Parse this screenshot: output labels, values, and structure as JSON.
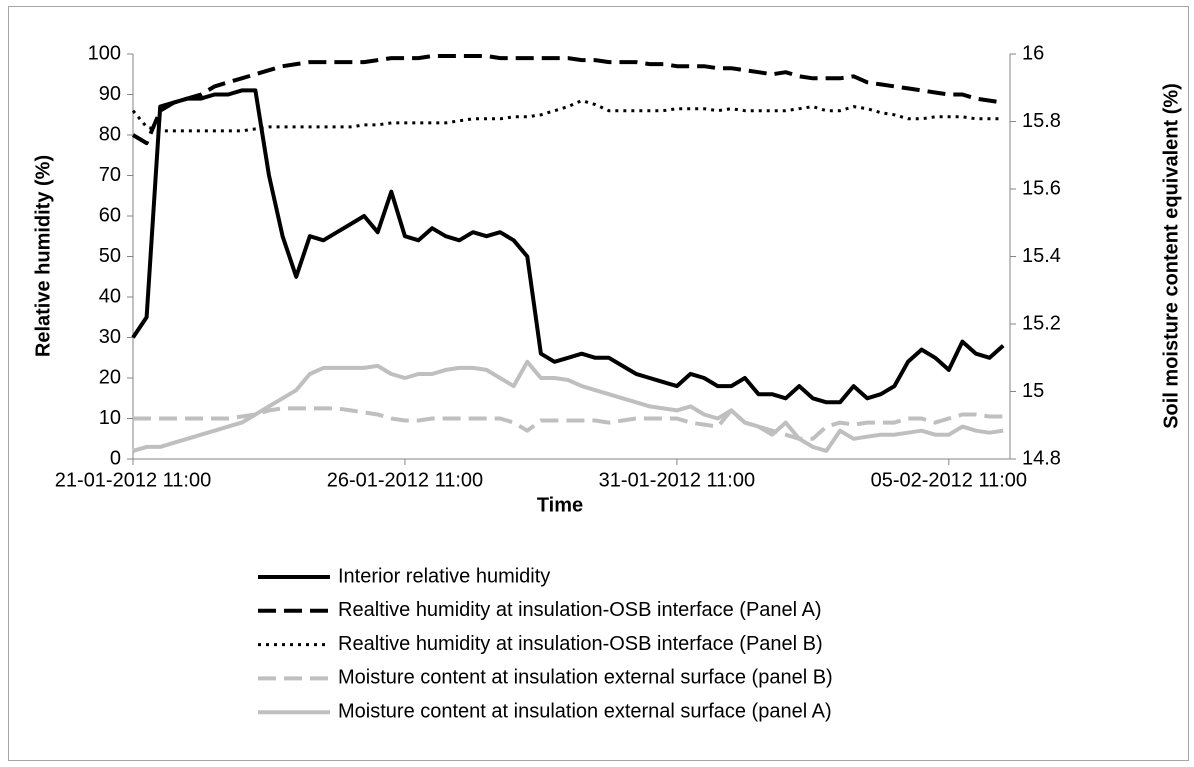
{
  "chart_data": {
    "type": "line",
    "x_label": "Time",
    "y_label": "Relative humidity (%)",
    "y2_label": "Soil moisture content equivalent (%)",
    "x": [
      "2012-01-21T11:00",
      "2012-01-21T17:00",
      "2012-01-21T23:00",
      "2012-01-22T05:00",
      "2012-01-22T11:00",
      "2012-01-22T17:00",
      "2012-01-22T23:00",
      "2012-01-23T05:00",
      "2012-01-23T11:00",
      "2012-01-23T17:00",
      "2012-01-23T23:00",
      "2012-01-24T05:00",
      "2012-01-24T11:00",
      "2012-01-24T17:00",
      "2012-01-24T23:00",
      "2012-01-25T05:00",
      "2012-01-25T11:00",
      "2012-01-25T17:00",
      "2012-01-25T23:00",
      "2012-01-26T05:00",
      "2012-01-26T11:00",
      "2012-01-26T17:00",
      "2012-01-26T23:00",
      "2012-01-27T05:00",
      "2012-01-27T11:00",
      "2012-01-27T17:00",
      "2012-01-27T23:00",
      "2012-01-28T05:00",
      "2012-01-28T11:00",
      "2012-01-28T17:00",
      "2012-01-28T23:00",
      "2012-01-29T05:00",
      "2012-01-29T11:00",
      "2012-01-29T17:00",
      "2012-01-29T23:00",
      "2012-01-30T05:00",
      "2012-01-30T11:00",
      "2012-01-30T17:00",
      "2012-01-30T23:00",
      "2012-01-31T05:00",
      "2012-01-31T11:00",
      "2012-01-31T17:00",
      "2012-01-31T23:00",
      "2012-02-01T05:00",
      "2012-02-01T11:00",
      "2012-02-01T17:00",
      "2012-02-01T23:00",
      "2012-02-02T05:00",
      "2012-02-02T11:00",
      "2012-02-02T17:00",
      "2012-02-02T23:00",
      "2012-02-03T05:00",
      "2012-02-03T11:00",
      "2012-02-03T17:00",
      "2012-02-03T23:00",
      "2012-02-04T05:00",
      "2012-02-04T11:00",
      "2012-02-04T17:00",
      "2012-02-04T23:00",
      "2012-02-05T05:00",
      "2012-02-05T11:00",
      "2012-02-05T17:00",
      "2012-02-05T23:00",
      "2012-02-06T05:00",
      "2012-02-06T11:00"
    ],
    "xlim": [
      "2012-01-21T11:00",
      "2012-02-06T14:00"
    ],
    "xticks": [
      {
        "value": "2012-01-21T11:00",
        "label": "21-01-2012 11:00"
      },
      {
        "value": "2012-01-26T11:00",
        "label": "26-01-2012 11:00"
      },
      {
        "value": "2012-01-31T11:00",
        "label": "31-01-2012 11:00"
      },
      {
        "value": "2012-02-05T11:00",
        "label": "05-02-2012 11:00"
      }
    ],
    "ylim": [
      0,
      100
    ],
    "yticks": [
      0,
      10,
      20,
      30,
      40,
      50,
      60,
      70,
      80,
      90,
      100
    ],
    "y2lim": [
      14.8,
      16
    ],
    "y2ticks": [
      14.8,
      15,
      15.2,
      15.4,
      15.6,
      15.8,
      16
    ],
    "series": [
      {
        "name": "Interior relative humidity",
        "color": "#000000",
        "style": "solid",
        "values": [
          30,
          35,
          87,
          88,
          89,
          89,
          90,
          90,
          91,
          91,
          70,
          55,
          45,
          55,
          54,
          56,
          58,
          60,
          56,
          66,
          55,
          54,
          57,
          55,
          54,
          56,
          55,
          56,
          54,
          50,
          26,
          24,
          25,
          26,
          25,
          25,
          23,
          21,
          20,
          19,
          18,
          21,
          20,
          18,
          18,
          20,
          16,
          16,
          15,
          18,
          15,
          14,
          14,
          18,
          15,
          16,
          18,
          24,
          27,
          25,
          22,
          29,
          26,
          25,
          28
        ]
      },
      {
        "name": "Realtive humidity at insulation-OSB interface (Panel A)",
        "color": "#000000",
        "style": "dashed",
        "values": [
          80,
          78,
          86,
          88,
          89,
          90,
          92,
          93,
          94,
          95,
          96,
          97,
          97.5,
          98,
          98,
          98,
          98,
          98,
          98.5,
          99,
          99,
          99,
          99.5,
          99.5,
          99.5,
          99.5,
          99.5,
          99,
          99,
          99,
          99,
          99,
          99,
          98.5,
          98.5,
          98,
          98,
          98,
          97.5,
          97.5,
          97,
          97,
          97,
          96.5,
          96.5,
          96,
          95.5,
          95,
          95.5,
          94.5,
          94,
          94,
          94,
          94.5,
          93,
          92.5,
          92,
          91.5,
          91,
          90.5,
          90,
          90,
          89,
          88.5,
          88
        ]
      },
      {
        "name": "Realtive humidity at insulation-OSB interface (Panel B)",
        "color": "#000000",
        "style": "dotted",
        "values": [
          86,
          82,
          81,
          81,
          81,
          81,
          81,
          81,
          81,
          81.5,
          82,
          82,
          82,
          82,
          82,
          82,
          82,
          82.5,
          82.5,
          83,
          83,
          83,
          83,
          83,
          83.5,
          84,
          84,
          84,
          84.5,
          84.5,
          85,
          86,
          87,
          88.5,
          87.5,
          86,
          86,
          86,
          86,
          86,
          86.5,
          86.5,
          86.5,
          86,
          86.5,
          86,
          86,
          86,
          86,
          86.5,
          87,
          86,
          86,
          87,
          86.5,
          85.5,
          85,
          84,
          84,
          84.5,
          84.5,
          84.5,
          84,
          84,
          84
        ]
      },
      {
        "name": "Moisture content at insulation external surface (panel B)",
        "color": "#bfbfbf",
        "style": "dashed",
        "axis": "y2",
        "values": [
          14.92,
          14.92,
          14.92,
          14.92,
          14.92,
          14.92,
          14.92,
          14.92,
          14.926,
          14.932,
          14.944,
          14.95,
          14.95,
          14.95,
          14.95,
          14.95,
          14.944,
          14.938,
          14.932,
          14.92,
          14.914,
          14.914,
          14.92,
          14.92,
          14.92,
          14.92,
          14.92,
          14.92,
          14.908,
          14.884,
          14.914,
          14.914,
          14.914,
          14.914,
          14.914,
          14.908,
          14.914,
          14.92,
          14.92,
          14.92,
          14.92,
          14.908,
          14.902,
          14.896,
          14.944,
          14.908,
          14.896,
          14.884,
          14.872,
          14.86,
          14.86,
          14.896,
          14.908,
          14.902,
          14.908,
          14.908,
          14.908,
          14.92,
          14.92,
          14.908,
          14.92,
          14.932,
          14.932,
          14.926,
          14.926
        ]
      },
      {
        "name": "Moisture content at insulation external surface (panel A)",
        "color": "#bfbfbf",
        "style": "solid",
        "axis": "y2",
        "values": [
          14.824,
          14.836,
          14.836,
          14.848,
          14.86,
          14.872,
          14.884,
          14.896,
          14.908,
          14.932,
          14.956,
          14.98,
          15.004,
          15.052,
          15.07,
          15.07,
          15.07,
          15.07,
          15.076,
          15.052,
          15.04,
          15.052,
          15.052,
          15.064,
          15.07,
          15.07,
          15.064,
          15.04,
          15.016,
          15.088,
          15.04,
          15.04,
          15.034,
          15.016,
          15.004,
          14.992,
          14.98,
          14.968,
          14.956,
          14.95,
          14.944,
          14.956,
          14.932,
          14.92,
          14.944,
          14.908,
          14.896,
          14.872,
          14.908,
          14.86,
          14.836,
          14.824,
          14.884,
          14.86,
          14.866,
          14.872,
          14.872,
          14.878,
          14.884,
          14.872,
          14.872,
          14.896,
          14.884,
          14.878,
          14.884
        ]
      }
    ]
  }
}
